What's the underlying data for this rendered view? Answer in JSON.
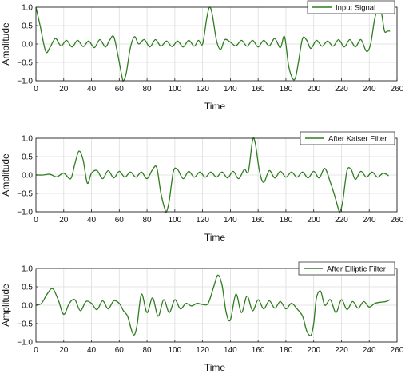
{
  "chart_data": [
    {
      "type": "line",
      "xlabel": "Time",
      "ylabel": "Amplitude",
      "xlim": [
        0,
        260
      ],
      "ylim": [
        -1.0,
        1.0
      ],
      "x_ticks": [
        0,
        20,
        40,
        60,
        80,
        100,
        120,
        140,
        160,
        180,
        200,
        220,
        240,
        260
      ],
      "y_ticks": [
        -1.0,
        -0.5,
        0.0,
        0.5,
        1.0
      ],
      "x_tick_labels": [
        "0",
        "20",
        "40",
        "60",
        "80",
        "100",
        "120",
        "140",
        "160",
        "180",
        "200",
        "220",
        "240",
        "260"
      ],
      "y_tick_labels": [
        "−1.0",
        "−0.5",
        "0.0",
        "0.5",
        "1.0"
      ],
      "grid": true,
      "legend_position": "top-right",
      "color": "#2e7d1e",
      "series": [
        {
          "name": "Input Signal",
          "x": [
            0,
            3,
            7,
            10,
            14,
            18,
            22,
            26,
            30,
            34,
            38,
            42,
            46,
            50,
            53,
            56,
            59,
            62,
            63,
            65,
            68,
            71,
            74,
            78,
            82,
            86,
            90,
            94,
            98,
            102,
            106,
            110,
            114,
            117,
            120,
            123,
            125,
            127,
            130,
            133,
            136,
            140,
            144,
            148,
            152,
            156,
            160,
            164,
            168,
            172,
            176,
            179,
            182,
            185,
            187,
            189,
            192,
            195,
            198,
            202,
            206,
            210,
            214,
            218,
            222,
            226,
            230,
            234,
            238,
            241,
            244,
            247,
            249,
            251,
            253,
            255
          ],
          "y": [
            1.0,
            0.5,
            -0.2,
            -0.1,
            0.15,
            -0.05,
            0.1,
            -0.08,
            0.1,
            -0.07,
            0.08,
            -0.1,
            0.12,
            -0.08,
            0.1,
            0.2,
            -0.3,
            -0.9,
            -1.0,
            -0.8,
            -0.1,
            0.2,
            0.0,
            0.12,
            -0.08,
            0.12,
            -0.06,
            0.08,
            -0.07,
            0.08,
            -0.08,
            0.1,
            -0.06,
            0.1,
            0.0,
            0.7,
            1.0,
            0.8,
            0.1,
            -0.15,
            0.12,
            0.05,
            -0.05,
            0.1,
            -0.06,
            0.1,
            -0.08,
            0.1,
            -0.05,
            0.15,
            -0.1,
            0.2,
            -0.6,
            -0.95,
            -0.9,
            -0.5,
            0.15,
            0.1,
            -0.12,
            0.1,
            -0.06,
            0.08,
            -0.06,
            0.12,
            -0.08,
            0.12,
            -0.08,
            0.12,
            -0.2,
            0.0,
            0.7,
            1.0,
            0.8,
            0.35,
            0.35,
            0.35
          ]
        }
      ]
    },
    {
      "type": "line",
      "xlabel": "Time",
      "ylabel": "Amplitude",
      "xlim": [
        0,
        260
      ],
      "ylim": [
        -1.0,
        1.0
      ],
      "x_ticks": [
        0,
        20,
        40,
        60,
        80,
        100,
        120,
        140,
        160,
        180,
        200,
        220,
        240,
        260
      ],
      "y_ticks": [
        -1.0,
        -0.5,
        0.0,
        0.5,
        1.0
      ],
      "x_tick_labels": [
        "0",
        "20",
        "40",
        "60",
        "80",
        "100",
        "120",
        "140",
        "160",
        "180",
        "200",
        "220",
        "240",
        "260"
      ],
      "y_tick_labels": [
        "−1.0",
        "−0.5",
        "0.0",
        "0.5",
        "1.0"
      ],
      "grid": true,
      "legend_position": "top-right",
      "color": "#2e7d1e",
      "series": [
        {
          "name": "After Kaiser Filter",
          "x": [
            0,
            5,
            10,
            15,
            20,
            25,
            28,
            31,
            34,
            37,
            40,
            44,
            48,
            52,
            56,
            60,
            64,
            68,
            72,
            76,
            80,
            84,
            87,
            90,
            93,
            94,
            96,
            99,
            102,
            106,
            110,
            114,
            118,
            122,
            126,
            130,
            134,
            138,
            142,
            146,
            150,
            153,
            156,
            158,
            161,
            164,
            168,
            172,
            176,
            180,
            184,
            188,
            192,
            196,
            200,
            204,
            208,
            212,
            215,
            218,
            219,
            221,
            224,
            227,
            230,
            234,
            238,
            242,
            246,
            250,
            254
          ],
          "y": [
            0.0,
            0.0,
            0.02,
            -0.05,
            0.05,
            -0.1,
            0.3,
            0.65,
            0.4,
            -0.22,
            0.05,
            0.12,
            -0.1,
            0.12,
            -0.08,
            0.1,
            -0.06,
            0.08,
            -0.06,
            0.08,
            -0.1,
            0.15,
            0.2,
            -0.5,
            -0.95,
            -1.0,
            -0.7,
            0.1,
            0.15,
            -0.1,
            0.1,
            -0.06,
            0.08,
            -0.06,
            0.08,
            -0.06,
            0.08,
            -0.08,
            0.1,
            -0.1,
            0.15,
            0.1,
            0.95,
            0.85,
            0.1,
            -0.2,
            0.12,
            -0.08,
            0.1,
            -0.06,
            0.08,
            -0.06,
            0.08,
            -0.08,
            0.1,
            -0.08,
            0.18,
            -0.2,
            -0.55,
            -0.95,
            -1.0,
            -0.7,
            0.12,
            0.15,
            -0.12,
            0.1,
            -0.06,
            0.08,
            -0.06,
            0.05,
            -0.02
          ]
        }
      ]
    },
    {
      "type": "line",
      "xlabel": "Time",
      "ylabel": "Amplitude",
      "xlim": [
        0,
        260
      ],
      "ylim": [
        -1.0,
        1.0
      ],
      "x_ticks": [
        0,
        20,
        40,
        60,
        80,
        100,
        120,
        140,
        160,
        180,
        200,
        220,
        240,
        260
      ],
      "y_ticks": [
        -1.0,
        -0.5,
        0.0,
        0.5,
        1.0
      ],
      "x_tick_labels": [
        "0",
        "20",
        "40",
        "60",
        "80",
        "100",
        "120",
        "140",
        "160",
        "180",
        "200",
        "220",
        "240",
        "260"
      ],
      "y_tick_labels": [
        "−1.0",
        "−0.5",
        "0.0",
        "0.5",
        "1.0"
      ],
      "grid": true,
      "legend_position": "top-right",
      "color": "#2e7d1e",
      "series": [
        {
          "name": "After Elliptic Filter",
          "x": [
            0,
            4,
            8,
            12,
            16,
            20,
            24,
            28,
            32,
            36,
            40,
            44,
            48,
            52,
            56,
            60,
            63,
            66,
            69,
            71,
            73,
            76,
            80,
            84,
            88,
            92,
            96,
            100,
            104,
            108,
            112,
            116,
            120,
            124,
            128,
            131,
            134,
            137,
            140,
            144,
            148,
            152,
            156,
            160,
            164,
            168,
            172,
            176,
            180,
            184,
            188,
            192,
            195,
            198,
            200,
            202,
            205,
            208,
            212,
            216,
            220,
            224,
            228,
            232,
            236,
            240,
            244,
            248,
            252,
            255
          ],
          "y": [
            0.0,
            0.05,
            0.3,
            0.45,
            0.15,
            -0.25,
            0.05,
            0.15,
            -0.15,
            0.1,
            0.05,
            -0.12,
            0.12,
            -0.1,
            0.12,
            0.05,
            -0.15,
            -0.3,
            -0.7,
            -0.8,
            -0.5,
            0.3,
            -0.2,
            0.2,
            -0.3,
            0.15,
            -0.2,
            0.15,
            -0.1,
            0.05,
            -0.02,
            0.05,
            0.02,
            0.05,
            0.5,
            0.82,
            0.55,
            -0.2,
            -0.4,
            0.3,
            -0.2,
            0.25,
            -0.15,
            0.15,
            -0.1,
            0.12,
            -0.08,
            0.1,
            -0.1,
            0.05,
            -0.1,
            -0.3,
            -0.7,
            -0.82,
            -0.5,
            0.2,
            0.38,
            0.0,
            0.15,
            -0.2,
            0.15,
            -0.12,
            0.1,
            -0.08,
            0.1,
            -0.05,
            0.05,
            0.08,
            0.1,
            0.15
          ]
        }
      ]
    }
  ]
}
